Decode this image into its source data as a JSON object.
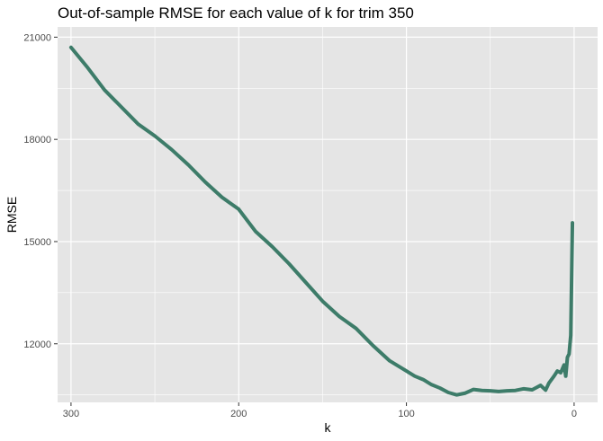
{
  "chart_data": {
    "type": "line",
    "title": "Out-of-sample RMSE for each value of k for trim 350",
    "xlabel": "k",
    "ylabel": "RMSE",
    "x_reversed": true,
    "xlim": [
      308,
      -14
    ],
    "ylim": [
      10280,
      21300
    ],
    "x_ticks": [
      300,
      200,
      100,
      0
    ],
    "x_tick_labels": [
      "300",
      "200",
      "100",
      "0"
    ],
    "x_minor_ticks": [
      250,
      150,
      50
    ],
    "y_ticks": [
      12000,
      15000,
      18000,
      21000
    ],
    "y_tick_labels": [
      "12000",
      "15000",
      "18000",
      "21000"
    ],
    "y_minor_ticks": [
      10500,
      13500,
      16500,
      19500
    ],
    "grid": true,
    "panel_color": "#e5e5e5",
    "grid_color": "#ffffff",
    "line_color": "#3d7c69",
    "series": [
      {
        "x": [
          300,
          290,
          280,
          270,
          260,
          250,
          240,
          230,
          220,
          210,
          200,
          190,
          180,
          170,
          160,
          150,
          140,
          130,
          120,
          110,
          100,
          95,
          90,
          85,
          80,
          75,
          70,
          65,
          60,
          55,
          50,
          45,
          40,
          35,
          30,
          25,
          20,
          17,
          15,
          12,
          10,
          8,
          6,
          5,
          4,
          3,
          2,
          1
        ],
        "y": [
          20700,
          20100,
          19450,
          18950,
          18450,
          18100,
          17700,
          17250,
          16750,
          16300,
          15950,
          15300,
          14850,
          14350,
          13800,
          13250,
          12800,
          12450,
          11950,
          11500,
          11200,
          11050,
          10950,
          10800,
          10700,
          10570,
          10500,
          10550,
          10660,
          10630,
          10620,
          10600,
          10620,
          10630,
          10680,
          10650,
          10780,
          10640,
          10850,
          11050,
          11200,
          11150,
          11380,
          11050,
          11600,
          11700,
          12250,
          15550
        ]
      }
    ]
  }
}
